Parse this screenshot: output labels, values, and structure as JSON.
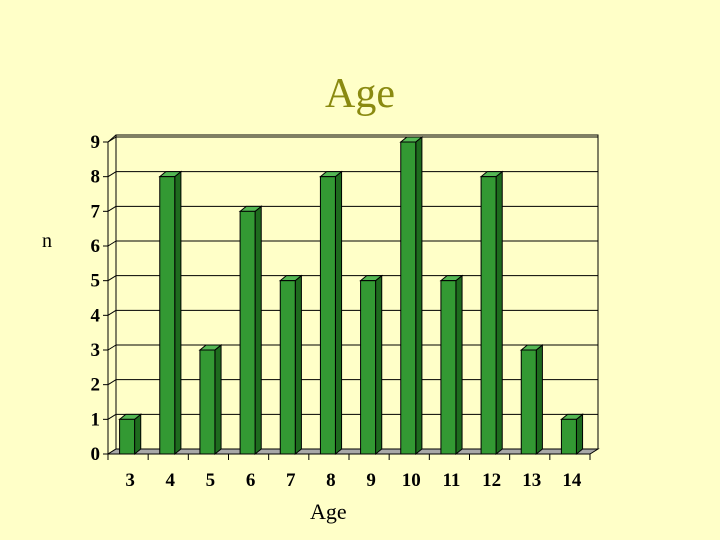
{
  "chart_data": {
    "type": "bar",
    "title": "Age",
    "xlabel": "Age",
    "ylabel": "n",
    "categories": [
      "3",
      "4",
      "5",
      "6",
      "7",
      "8",
      "9",
      "10",
      "11",
      "12",
      "13",
      "14"
    ],
    "values": [
      1,
      8,
      3,
      7,
      5,
      8,
      5,
      9,
      5,
      8,
      3,
      1
    ],
    "yticks": [
      "0",
      "1",
      "2",
      "3",
      "4",
      "5",
      "6",
      "7",
      "8",
      "9"
    ],
    "ylim": [
      0,
      9
    ],
    "grid": true,
    "legend": "none",
    "colors": {
      "bar_front": "#339933",
      "bar_side": "#1E6B1E",
      "bar_top": "#55B855",
      "background": "#FFFFC8",
      "title": "#8A8A10",
      "gridline": "#000000"
    }
  }
}
